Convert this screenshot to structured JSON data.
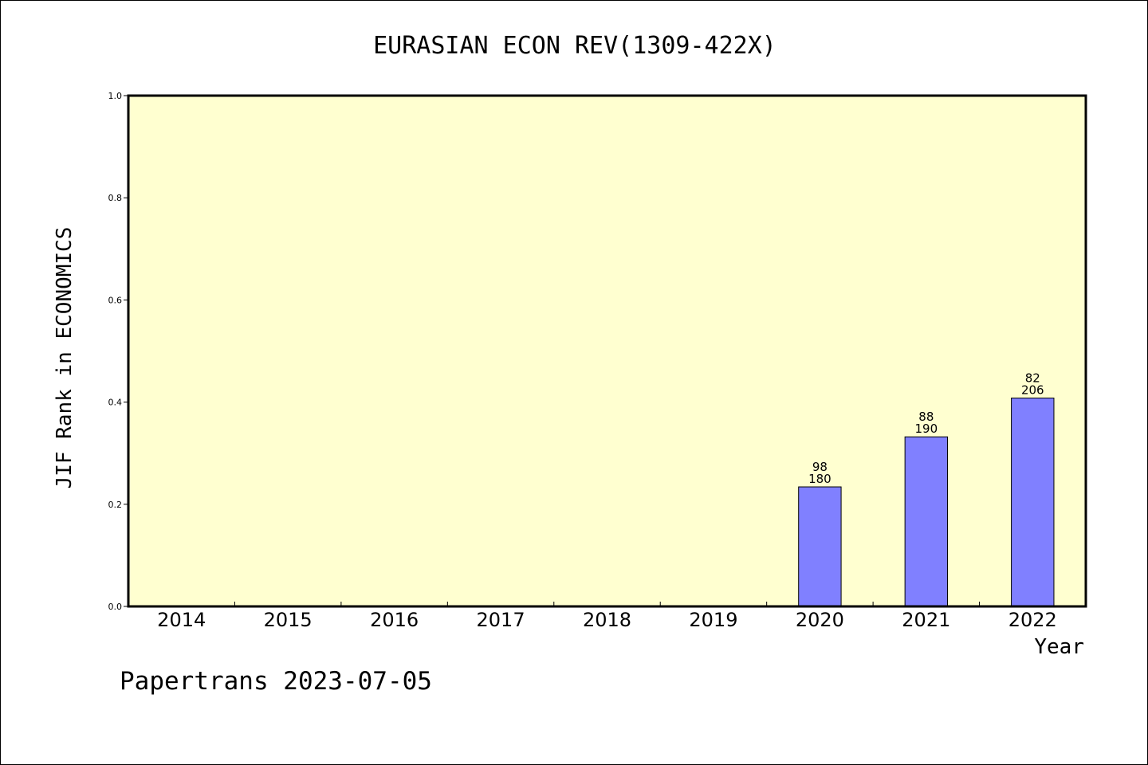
{
  "chart_data": {
    "type": "bar",
    "title": "EURASIAN ECON REV(1309-422X)",
    "xlabel": "Year",
    "ylabel": "JIF Rank in ECONOMICS",
    "ylim": [
      0,
      1.0
    ],
    "yticks": [
      "0.0",
      "0.2",
      "0.4",
      "0.6",
      "0.8",
      "1.0"
    ],
    "categories": [
      "2014",
      "2015",
      "2016",
      "2017",
      "2018",
      "2019",
      "2020",
      "2021",
      "2022"
    ],
    "values": [
      null,
      null,
      null,
      null,
      null,
      null,
      0.234,
      0.332,
      0.408
    ],
    "bar_labels": [
      null,
      null,
      null,
      null,
      null,
      null,
      {
        "rank": "98",
        "total": "180"
      },
      {
        "rank": "88",
        "total": "190"
      },
      {
        "rank": "82",
        "total": "206"
      }
    ],
    "grid": false,
    "colors": {
      "plot_background": "#ffffd0",
      "bar_fill": "#8080ff",
      "bar_edge": "#000000"
    }
  },
  "footer": {
    "text": "Papertrans 2023-07-05"
  }
}
